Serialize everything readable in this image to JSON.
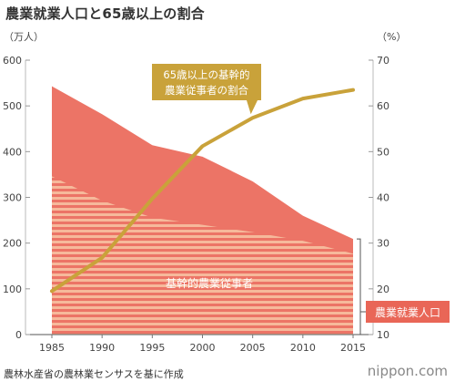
{
  "header": {
    "title": "農業就業人口と65歳以上の割合"
  },
  "footer": {
    "source": "農林水産省の農林業センサスを基に作成",
    "brand": "nippon.com"
  },
  "chart_data": {
    "type": "area",
    "x": [
      1985,
      1990,
      1995,
      2000,
      2005,
      2010,
      2015
    ],
    "x_ticks": [
      "1985",
      "1990",
      "1995",
      "2000",
      "2005",
      "2010",
      "2015"
    ],
    "y_left": {
      "unit": "（万人）",
      "range": [
        0,
        600
      ],
      "ticks": [
        "0",
        "100",
        "200",
        "300",
        "400",
        "500",
        "600"
      ]
    },
    "y_right": {
      "unit": "（%）",
      "range": [
        10,
        70
      ],
      "ticks": [
        "10",
        "20",
        "30",
        "40",
        "50",
        "60",
        "70"
      ]
    },
    "series": [
      {
        "name": "農業就業人口",
        "axis": "left",
        "style": "area",
        "color": "#ec7466",
        "values": [
          543,
          482,
          414,
          389,
          335,
          260,
          209
        ]
      },
      {
        "name": "基幹的農業従事者",
        "axis": "left",
        "style": "striped-area",
        "color": "#f6b99b",
        "values": [
          346,
          293,
          256,
          240,
          224,
          205,
          177
        ]
      },
      {
        "name": "65歳以上の基幹的農業従事者の割合",
        "axis": "right",
        "style": "line",
        "color": "#c9a23a",
        "values": [
          19.5,
          26.8,
          39.7,
          51.2,
          57.4,
          61.6,
          63.5
        ]
      }
    ],
    "grid": false,
    "legend": "inline labels"
  },
  "annotations": {
    "line_label_1": "65歳以上の基幹的",
    "line_label_2": "農業従事者の割合",
    "core_label": "基幹的農業従事者",
    "total_label": "農業就業人口"
  },
  "colors": {
    "total_area": "#ec7466",
    "stripe": "#f6b99b",
    "line": "#c9a23a",
    "label_box": "#c9a23a",
    "total_box": "#e96657"
  }
}
